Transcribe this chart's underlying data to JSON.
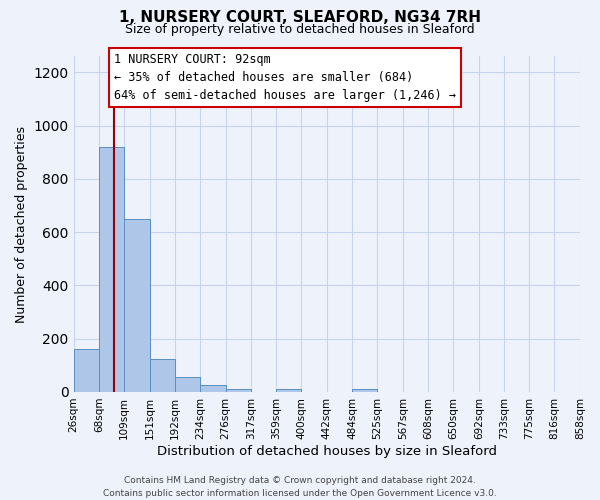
{
  "title": "1, NURSERY COURT, SLEAFORD, NG34 7RH",
  "subtitle": "Size of property relative to detached houses in Sleaford",
  "xlabel": "Distribution of detached houses by size in Sleaford",
  "ylabel": "Number of detached properties",
  "bin_edges": [
    26,
    68,
    109,
    151,
    192,
    234,
    276,
    317,
    359,
    400,
    442,
    484,
    525,
    567,
    608,
    650,
    692,
    733,
    775,
    816,
    858
  ],
  "bin_counts": [
    160,
    920,
    650,
    125,
    55,
    28,
    12,
    0,
    12,
    0,
    0,
    12,
    0,
    0,
    0,
    0,
    0,
    0,
    0,
    0
  ],
  "bar_color": "#aec6e8",
  "bar_edge_color": "#5a8fc2",
  "vline_x": 92,
  "vline_color": "#9b0000",
  "ylim": [
    0,
    1260
  ],
  "yticks": [
    0,
    200,
    400,
    600,
    800,
    1000,
    1200
  ],
  "annotation_title": "1 NURSERY COURT: 92sqm",
  "annotation_line1": "← 35% of detached houses are smaller (684)",
  "annotation_line2": "64% of semi-detached houses are larger (1,246) →",
  "footer1": "Contains HM Land Registry data © Crown copyright and database right 2024.",
  "footer2": "Contains public sector information licensed under the Open Government Licence v3.0.",
  "background_color": "#eef2fb",
  "grid_color": "#c8d4ee"
}
